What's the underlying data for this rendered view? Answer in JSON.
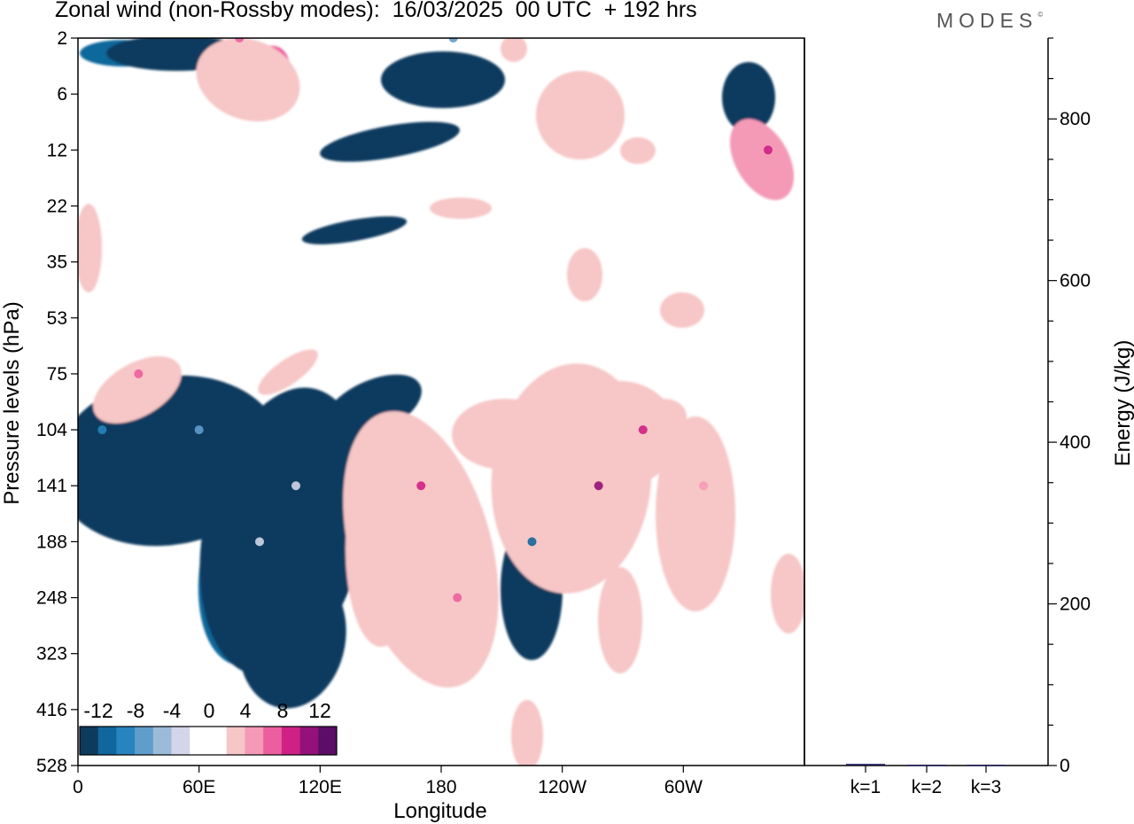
{
  "title": "Zonal wind (non-Rossby modes):  16/03/2025  00 UTC  + 192 hrs",
  "logo": "MODES",
  "colors": {
    "neg": [
      "#0d3b5e",
      "#11679b",
      "#2784be",
      "#5f9dcb",
      "#9cbbd9",
      "#d3d6e8"
    ],
    "pos": [
      "#f7c6c6",
      "#f49ab7",
      "#ec5f9e",
      "#cf2084",
      "#931178",
      "#5b0d68"
    ],
    "zero": "#ffffff",
    "bar": "#1a1a5a"
  },
  "chart_data": [
    {
      "type": "heatmap",
      "title": "Zonal wind (non-Rossby modes):  16/03/2025  00 UTC  + 192 hrs",
      "xlabel": "Longitude",
      "ylabel": "Pressure levels (hPa)",
      "x_ticks": [
        "0",
        "60E",
        "120E",
        "180",
        "120W",
        "60W"
      ],
      "y_ticks": [
        "2",
        "6",
        "12",
        "22",
        "35",
        "53",
        "75",
        "104",
        "141",
        "188",
        "248",
        "323",
        "416",
        "528"
      ],
      "colorbar_labels": [
        "-12",
        "-8",
        "-4",
        "0",
        "4",
        "8",
        "12"
      ],
      "colorbar_levels": [
        -12,
        -10,
        -8,
        -6,
        -4,
        -2,
        0,
        2,
        4,
        6,
        8,
        10,
        12
      ],
      "features": [
        {
          "lon": 108,
          "level": 141,
          "value": -14
        },
        {
          "lon": 90,
          "level": 188,
          "value": -12
        },
        {
          "lon": 60,
          "level": 104,
          "value": -8
        },
        {
          "lon": 12,
          "level": 104,
          "value": -6
        },
        {
          "lon": 186,
          "level": 4,
          "value": -8
        },
        {
          "lon": 258,
          "level": 141,
          "value": 11
        },
        {
          "lon": 170,
          "level": 141,
          "value": 8
        },
        {
          "lon": 188,
          "level": 248,
          "value": 7
        },
        {
          "lon": 280,
          "level": 104,
          "value": 8
        },
        {
          "lon": 310,
          "level": 141,
          "value": 4
        },
        {
          "lon": 342,
          "level": 12,
          "value": 8
        },
        {
          "lon": 30,
          "level": 75,
          "value": 6
        },
        {
          "lon": 80,
          "level": 4,
          "value": 6
        },
        {
          "lon": 225,
          "level": 188,
          "value": -5
        }
      ]
    },
    {
      "type": "bar",
      "categories": [
        "k=1",
        "k=2",
        "k=3"
      ],
      "values": [
        2,
        1,
        1
      ],
      "ylabel": "Energy (J/kg)",
      "ylim": [
        0,
        900
      ],
      "y_ticks": [
        0,
        200,
        400,
        600,
        800
      ]
    }
  ]
}
